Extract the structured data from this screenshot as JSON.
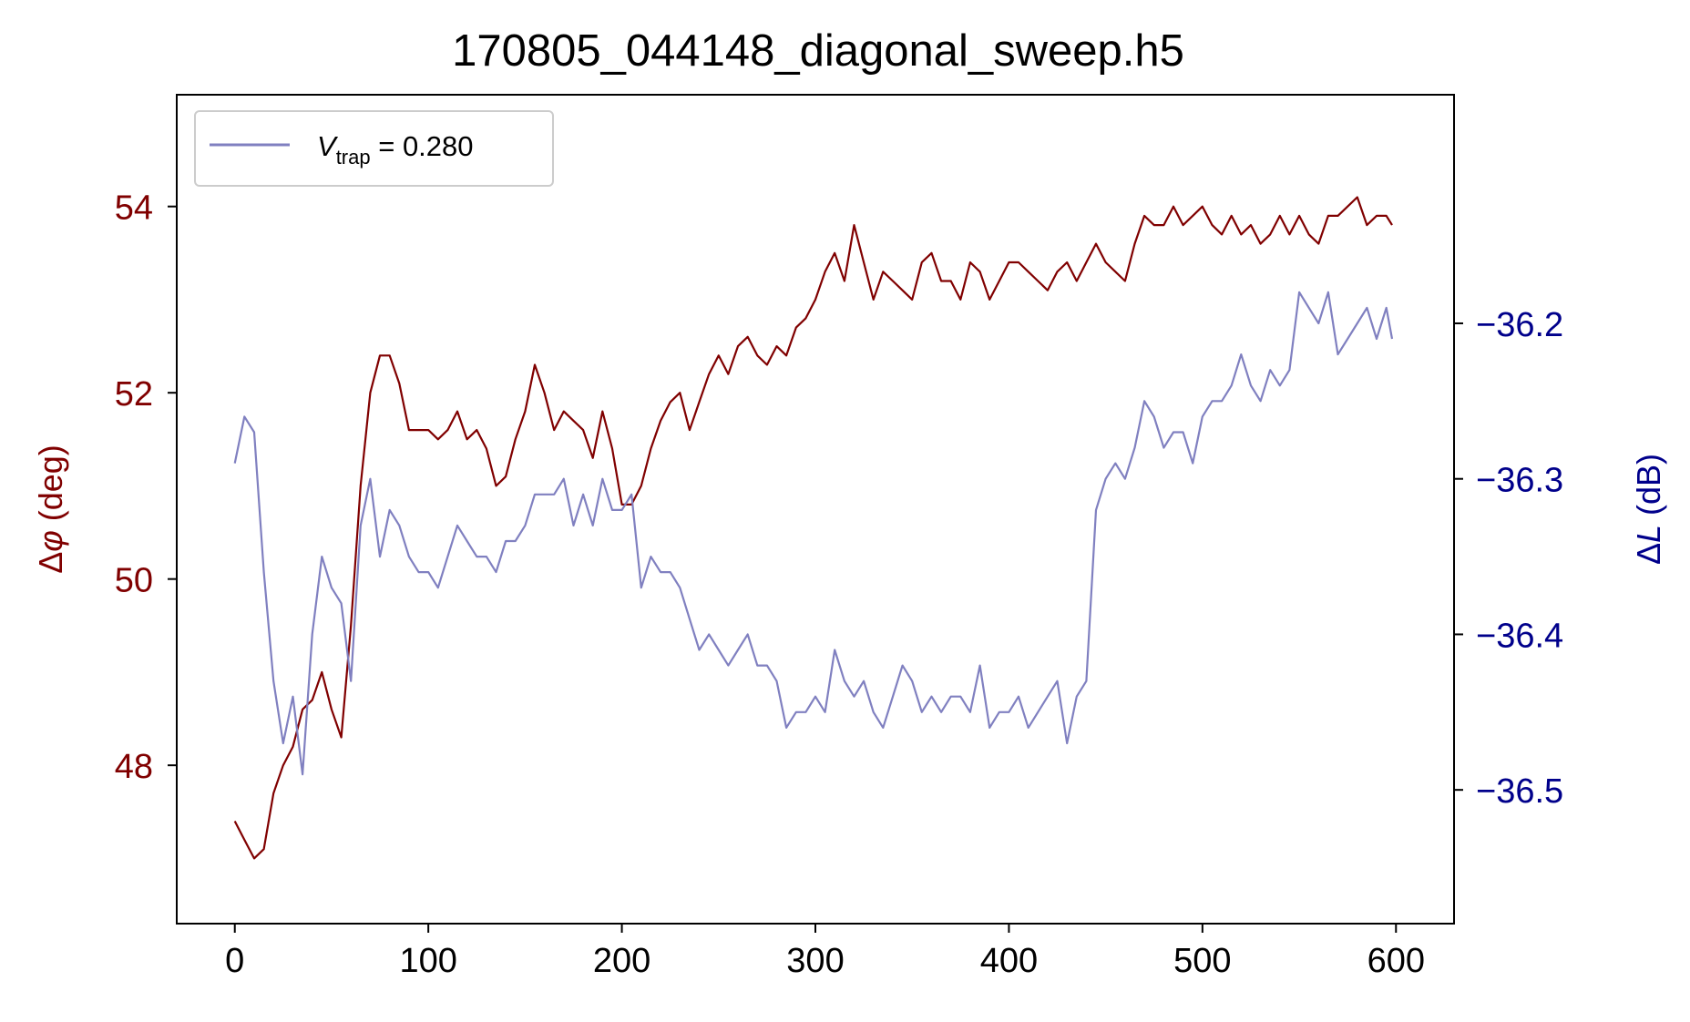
{
  "chart_data": {
    "type": "line",
    "title": "170805_044148_diagonal_sweep.h5",
    "xlabel": "",
    "ylabel_left": {
      "prefix": "Δ",
      "symbol": "φ",
      "unit": "(deg)"
    },
    "ylabel_right": {
      "prefix": "Δ",
      "symbol": "L",
      "unit": "(dB)"
    },
    "xlim": [
      -30,
      630
    ],
    "ylim_left": [
      46.3,
      55.2
    ],
    "ylim_right": [
      -36.586,
      -36.053
    ],
    "xticks": [
      0,
      100,
      200,
      300,
      400,
      500,
      600
    ],
    "xtick_labels": [
      "0",
      "100",
      "200",
      "300",
      "400",
      "500",
      "600"
    ],
    "yticks_left": [
      48,
      50,
      52,
      54
    ],
    "ytick_labels_left": [
      "48",
      "50",
      "52",
      "54"
    ],
    "yticks_right": [
      -36.5,
      -36.4,
      -36.3,
      -36.2
    ],
    "ytick_labels_right": [
      "−36.5",
      "−36.4",
      "−36.3",
      "−36.2"
    ],
    "grid": false,
    "legend": {
      "placement": "upper-left",
      "var": "V",
      "sub": "trap",
      "rest": " = 0.280"
    },
    "series": [
      {
        "axis": "left",
        "color": "#800000",
        "x": [
          0,
          5,
          10,
          15,
          20,
          25,
          30,
          35,
          40,
          45,
          50,
          55,
          60,
          65,
          70,
          75,
          80,
          85,
          90,
          95,
          100,
          105,
          110,
          115,
          120,
          125,
          130,
          135,
          140,
          145,
          150,
          155,
          160,
          165,
          170,
          175,
          180,
          185,
          190,
          195,
          200,
          205,
          210,
          215,
          220,
          225,
          230,
          235,
          240,
          245,
          250,
          255,
          260,
          265,
          270,
          275,
          280,
          285,
          290,
          295,
          300,
          305,
          310,
          315,
          320,
          325,
          330,
          335,
          340,
          345,
          350,
          355,
          360,
          365,
          370,
          375,
          380,
          385,
          390,
          395,
          400,
          405,
          410,
          415,
          420,
          425,
          430,
          435,
          440,
          445,
          450,
          455,
          460,
          465,
          470,
          475,
          480,
          485,
          490,
          495,
          500,
          505,
          510,
          515,
          520,
          525,
          530,
          535,
          540,
          545,
          550,
          555,
          560,
          565,
          570,
          575,
          580,
          585,
          590,
          595,
          598
        ],
        "y": [
          47.4,
          47.2,
          47.0,
          47.1,
          47.7,
          48.0,
          48.2,
          48.6,
          48.7,
          49.0,
          48.6,
          48.3,
          49.5,
          51.0,
          52.0,
          52.4,
          52.4,
          52.1,
          51.6,
          51.6,
          51.6,
          51.5,
          51.6,
          51.8,
          51.5,
          51.6,
          51.4,
          51.0,
          51.1,
          51.5,
          51.8,
          52.3,
          52.0,
          51.6,
          51.8,
          51.7,
          51.6,
          51.3,
          51.8,
          51.4,
          50.8,
          50.8,
          51.0,
          51.4,
          51.7,
          51.9,
          52.0,
          51.6,
          51.9,
          52.2,
          52.4,
          52.2,
          52.5,
          52.6,
          52.4,
          52.3,
          52.5,
          52.4,
          52.7,
          52.8,
          53.0,
          53.3,
          53.5,
          53.2,
          53.8,
          53.4,
          53.0,
          53.3,
          53.2,
          53.1,
          53.0,
          53.4,
          53.5,
          53.2,
          53.2,
          53.0,
          53.4,
          53.3,
          53.0,
          53.2,
          53.4,
          53.4,
          53.3,
          53.2,
          53.1,
          53.3,
          53.4,
          53.2,
          53.4,
          53.6,
          53.4,
          53.3,
          53.2,
          53.6,
          53.9,
          53.8,
          53.8,
          54.0,
          53.8,
          53.9,
          54.0,
          53.8,
          53.7,
          53.9,
          53.7,
          53.8,
          53.6,
          53.7,
          53.9,
          53.7,
          53.9,
          53.7,
          53.6,
          53.9,
          53.9,
          54.0,
          54.1,
          53.8,
          53.9,
          53.9,
          53.8
        ]
      },
      {
        "axis": "right",
        "name": "V_trap = 0.280",
        "color": "#8080c0",
        "x": [
          0,
          5,
          10,
          15,
          20,
          25,
          30,
          35,
          40,
          45,
          50,
          55,
          60,
          65,
          70,
          75,
          80,
          85,
          90,
          95,
          100,
          105,
          110,
          115,
          120,
          125,
          130,
          135,
          140,
          145,
          150,
          155,
          160,
          165,
          170,
          175,
          180,
          185,
          190,
          195,
          200,
          205,
          210,
          215,
          220,
          225,
          230,
          235,
          240,
          245,
          250,
          255,
          260,
          265,
          270,
          275,
          280,
          285,
          290,
          295,
          300,
          305,
          310,
          315,
          320,
          325,
          330,
          335,
          340,
          345,
          350,
          355,
          360,
          365,
          370,
          375,
          380,
          385,
          390,
          395,
          400,
          405,
          410,
          415,
          420,
          425,
          430,
          435,
          440,
          445,
          450,
          455,
          460,
          465,
          470,
          475,
          480,
          485,
          490,
          495,
          500,
          505,
          510,
          515,
          520,
          525,
          530,
          535,
          540,
          545,
          550,
          555,
          560,
          565,
          570,
          575,
          580,
          585,
          590,
          595,
          598
        ],
        "y": [
          -36.29,
          -36.26,
          -36.27,
          -36.36,
          -36.43,
          -36.47,
          -36.44,
          -36.49,
          -36.4,
          -36.35,
          -36.37,
          -36.38,
          -36.43,
          -36.33,
          -36.3,
          -36.35,
          -36.32,
          -36.33,
          -36.35,
          -36.36,
          -36.36,
          -36.37,
          -36.35,
          -36.33,
          -36.34,
          -36.35,
          -36.35,
          -36.36,
          -36.34,
          -36.34,
          -36.33,
          -36.31,
          -36.31,
          -36.31,
          -36.3,
          -36.33,
          -36.31,
          -36.33,
          -36.3,
          -36.32,
          -36.32,
          -36.31,
          -36.37,
          -36.35,
          -36.36,
          -36.36,
          -36.37,
          -36.39,
          -36.41,
          -36.4,
          -36.41,
          -36.42,
          -36.41,
          -36.4,
          -36.42,
          -36.42,
          -36.43,
          -36.46,
          -36.45,
          -36.45,
          -36.44,
          -36.45,
          -36.41,
          -36.43,
          -36.44,
          -36.43,
          -36.45,
          -36.46,
          -36.44,
          -36.42,
          -36.43,
          -36.45,
          -36.44,
          -36.45,
          -36.44,
          -36.44,
          -36.45,
          -36.42,
          -36.46,
          -36.45,
          -36.45,
          -36.44,
          -36.46,
          -36.45,
          -36.44,
          -36.43,
          -36.47,
          -36.44,
          -36.43,
          -36.32,
          -36.3,
          -36.29,
          -36.3,
          -36.28,
          -36.25,
          -36.26,
          -36.28,
          -36.27,
          -36.27,
          -36.29,
          -36.26,
          -36.25,
          -36.25,
          -36.24,
          -36.22,
          -36.24,
          -36.25,
          -36.23,
          -36.24,
          -36.23,
          -36.18,
          -36.19,
          -36.2,
          -36.18,
          -36.22,
          -36.21,
          -36.2,
          -36.19,
          -36.21,
          -36.19,
          -36.21
        ]
      }
    ]
  }
}
